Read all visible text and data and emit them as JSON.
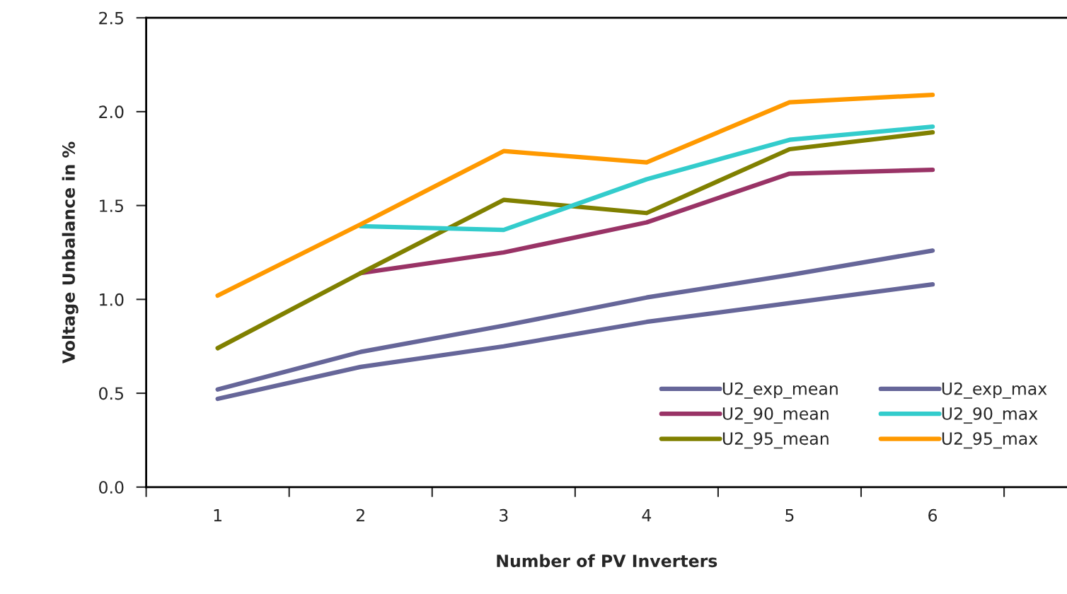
{
  "chart_data": {
    "type": "line",
    "xlabel": "Number of PV Inverters",
    "ylabel": "Voltage Unbalance in %",
    "categories": [
      "1",
      "2",
      "3",
      "4",
      "5",
      "6"
    ],
    "ylim": [
      0,
      2.5
    ],
    "yticks": [
      {
        "value": 0,
        "label": "0.0"
      },
      {
        "value": 0.5,
        "label": "0.5"
      },
      {
        "value": 1,
        "label": "1.0"
      },
      {
        "value": 1.5,
        "label": "1.5"
      },
      {
        "value": 2,
        "label": "2.0"
      },
      {
        "value": 2.5,
        "label": "2.5"
      }
    ],
    "grid": false,
    "legend": "bottom right",
    "marker": "none",
    "line_style": "solid",
    "series": [
      {
        "name": "U2_exp_mean",
        "color": "#666699",
        "values": [
          0.47,
          0.64,
          0.75,
          0.88,
          0.98,
          1.08
        ]
      },
      {
        "name": "U2_90_mean",
        "color": "#993366",
        "values": [
          null,
          1.14,
          1.25,
          1.41,
          1.67,
          1.69
        ]
      },
      {
        "name": "U2_95_mean",
        "color": "#808000",
        "values": [
          0.74,
          1.14,
          1.53,
          1.46,
          1.8,
          1.89
        ]
      },
      {
        "name": "U2_exp_max",
        "color": "#666699",
        "values": [
          0.52,
          0.72,
          0.86,
          1.01,
          1.13,
          1.26
        ]
      },
      {
        "name": "U2_90_max",
        "color": "#33cccc",
        "values": [
          null,
          1.39,
          1.37,
          1.64,
          1.85,
          1.92
        ]
      },
      {
        "name": "U2_95_max",
        "color": "#ff9900",
        "values": [
          1.02,
          1.4,
          1.79,
          1.73,
          2.05,
          2.09
        ]
      }
    ]
  }
}
